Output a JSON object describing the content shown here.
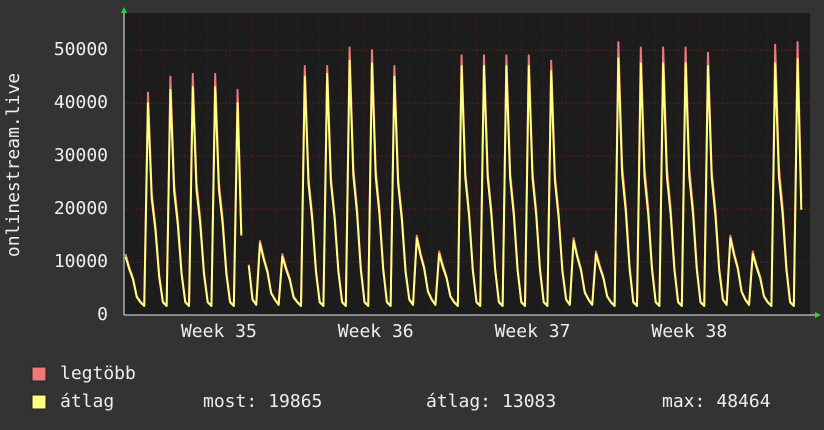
{
  "chart_data": {
    "type": "line",
    "y_label": "onlinestream.live",
    "categories": [
      null,
      null,
      null,
      null,
      null,
      null,
      null,
      null,
      null,
      null,
      null,
      null,
      null,
      null,
      null,
      null,
      null,
      null,
      null,
      null,
      null,
      null,
      null,
      null,
      null,
      "Week 35",
      null,
      null,
      null,
      null,
      null,
      null,
      null,
      null,
      null,
      null,
      null,
      null,
      null,
      null,
      null,
      null,
      null,
      null,
      null,
      null,
      null,
      null,
      null,
      null,
      null,
      null,
      null,
      null,
      null,
      null,
      null,
      null,
      null,
      null,
      null,
      null,
      null,
      null,
      null,
      null,
      null,
      "Week 36",
      null,
      null,
      null,
      null,
      null,
      null,
      null,
      null,
      null,
      null,
      null,
      null,
      null,
      null,
      null,
      null,
      null,
      null,
      null,
      null,
      null,
      null,
      null,
      null,
      null,
      null,
      null,
      null,
      null,
      null,
      null,
      null,
      null,
      null,
      null,
      null,
      null,
      null,
      null,
      null,
      null,
      "Week 37",
      null,
      null,
      null,
      null,
      null,
      null,
      null,
      null,
      null,
      null,
      null,
      null,
      null,
      null,
      null,
      null,
      null,
      null,
      null,
      null,
      null,
      null,
      null,
      null,
      null,
      null,
      null,
      null,
      null,
      null,
      null,
      null,
      null,
      null,
      null,
      null,
      null,
      null,
      null,
      null,
      null,
      "Week 38",
      null,
      null,
      null,
      null,
      null,
      null,
      null,
      null,
      null,
      null,
      null,
      null,
      null,
      null,
      null,
      null,
      null,
      null,
      null,
      null,
      null,
      null,
      null,
      null,
      null,
      null,
      null,
      null,
      null,
      null
    ],
    "series": [
      {
        "name": "legtöbb",
        "color": "#f07878",
        "values": [
          11500,
          9000,
          7000,
          3500,
          2500,
          1800,
          42000,
          23100,
          16800,
          7600,
          2500,
          1800,
          45000,
          24800,
          18000,
          8100,
          2500,
          1800,
          45500,
          25000,
          18200,
          8200,
          2500,
          1800,
          45500,
          25000,
          18200,
          8200,
          2500,
          1800,
          42500,
          15500,
          null,
          9500,
          3000,
          2000,
          14000,
          10900,
          8400,
          4200,
          3000,
          2000,
          11500,
          9000,
          6900,
          3500,
          2500,
          1800,
          47000,
          25900,
          18800,
          8500,
          2500,
          1800,
          47000,
          25900,
          18800,
          8500,
          2500,
          1800,
          50500,
          27800,
          20200,
          9100,
          2500,
          1800,
          50000,
          27500,
          20000,
          9000,
          2500,
          1800,
          47000,
          25900,
          18800,
          8500,
          3000,
          2000,
          15000,
          11700,
          9000,
          4500,
          3000,
          2000,
          12000,
          9400,
          7200,
          3600,
          2500,
          1800,
          49000,
          27000,
          19600,
          8800,
          2500,
          1800,
          49000,
          27000,
          19600,
          8800,
          2500,
          1800,
          49000,
          27000,
          19600,
          8800,
          2500,
          1800,
          49000,
          27000,
          19600,
          8800,
          2500,
          1800,
          48000,
          26400,
          19200,
          8600,
          3000,
          2000,
          14500,
          11300,
          8700,
          4400,
          3000,
          2000,
          12000,
          9400,
          7200,
          3600,
          2500,
          1800,
          51500,
          28300,
          20600,
          9300,
          2500,
          1800,
          50500,
          27800,
          20200,
          9100,
          2500,
          1800,
          50500,
          27800,
          20200,
          9100,
          2500,
          1800,
          50500,
          27800,
          20200,
          9100,
          2500,
          1800,
          49500,
          27200,
          19800,
          8900,
          3000,
          2000,
          15000,
          11700,
          9000,
          4500,
          3000,
          2000,
          12000,
          9400,
          7200,
          3600,
          2500,
          1800,
          51000,
          28100,
          20400,
          9200,
          2500,
          1800,
          51500,
          22000
        ]
      },
      {
        "name": "átlag",
        "color": "#ffff80",
        "values": [
          11000,
          8600,
          6700,
          3400,
          2400,
          1700,
          40000,
          22000,
          16000,
          7200,
          2400,
          1700,
          42500,
          23400,
          17000,
          7700,
          2400,
          1700,
          43000,
          23700,
          17200,
          7700,
          2400,
          1700,
          43000,
          23700,
          17200,
          7700,
          2400,
          1700,
          40000,
          15000,
          null,
          9300,
          2900,
          1900,
          13500,
          10500,
          8100,
          4100,
          2900,
          1900,
          11000,
          8600,
          6600,
          3300,
          2400,
          1700,
          45000,
          24800,
          18000,
          8100,
          2400,
          1700,
          45500,
          25000,
          18200,
          8200,
          2400,
          1700,
          48000,
          26400,
          19200,
          8600,
          2400,
          1700,
          47500,
          26100,
          19000,
          8600,
          2400,
          1700,
          45000,
          24800,
          18000,
          8100,
          2900,
          1900,
          14500,
          11300,
          8700,
          4400,
          2900,
          1900,
          11500,
          9000,
          6900,
          3500,
          2400,
          1700,
          47000,
          25900,
          18800,
          8500,
          2400,
          1700,
          47000,
          25900,
          18800,
          8500,
          2400,
          1700,
          47000,
          25900,
          18800,
          8500,
          2400,
          1700,
          47000,
          25900,
          18800,
          8500,
          2400,
          1700,
          46000,
          25300,
          18400,
          8300,
          2900,
          1900,
          14000,
          10900,
          8400,
          4200,
          2900,
          1900,
          11500,
          9000,
          6900,
          3500,
          2400,
          1700,
          48464,
          26700,
          19400,
          8700,
          2400,
          1700,
          47500,
          26100,
          19000,
          8600,
          2400,
          1700,
          47500,
          26100,
          19000,
          8600,
          2400,
          1700,
          47500,
          26100,
          19000,
          8600,
          2400,
          1700,
          47000,
          25900,
          18800,
          8500,
          2900,
          1900,
          14500,
          11300,
          8700,
          4400,
          2900,
          1900,
          11500,
          9000,
          6900,
          3500,
          2400,
          1700,
          47500,
          26100,
          19000,
          8600,
          2400,
          1700,
          48300,
          19865
        ]
      }
    ],
    "ylim": [
      0,
      57000
    ],
    "yticks": [
      0,
      10000,
      20000,
      30000,
      40000,
      50000
    ],
    "grid": true,
    "stats": [
      {
        "label": "most:",
        "value": 19865
      },
      {
        "label": "átlag:",
        "value": 13083
      },
      {
        "label": "max:",
        "value": 48464
      }
    ]
  }
}
